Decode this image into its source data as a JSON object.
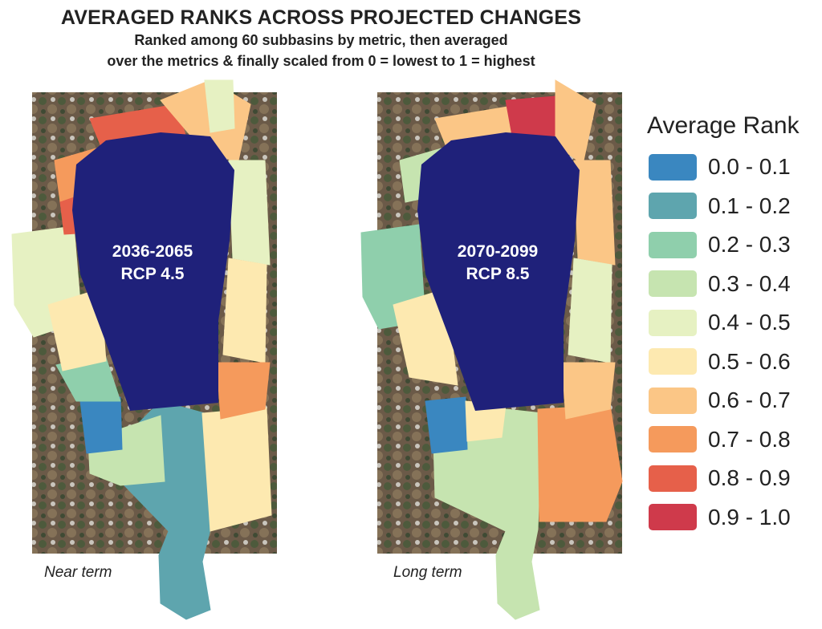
{
  "title": "AVERAGED RANKS ACROSS PROJECTED CHANGES",
  "subtitle_line1": "Ranked among 60 subbasins by metric, then averaged",
  "subtitle_line2": "over the metrics & finally scaled from 0 = lowest to 1 = highest",
  "maps": [
    {
      "period": "2036-2065",
      "scenario": "RCP 4.5",
      "term": "Near term"
    },
    {
      "period": "2070-2099",
      "scenario": "RCP 8.5",
      "term": "Long term"
    }
  ],
  "legend": {
    "title": "Average Rank",
    "items": [
      {
        "label": "0.0 - 0.1",
        "color": "#3a87c0"
      },
      {
        "label": "0.1 - 0.2",
        "color": "#5ea5ae"
      },
      {
        "label": "0.2 - 0.3",
        "color": "#8fcfac"
      },
      {
        "label": "0.3 - 0.4",
        "color": "#c6e4b0"
      },
      {
        "label": "0.4 - 0.5",
        "color": "#e6f1c2"
      },
      {
        "label": "0.5 - 0.6",
        "color": "#fde9b0"
      },
      {
        "label": "0.6 - 0.7",
        "color": "#fbc686"
      },
      {
        "label": "0.7 - 0.8",
        "color": "#f59a5c"
      },
      {
        "label": "0.8 - 0.9",
        "color": "#e6604a"
      },
      {
        "label": "0.9 - 1.0",
        "color": "#cf3a4b"
      }
    ]
  },
  "lake_color": "#1f217a"
}
